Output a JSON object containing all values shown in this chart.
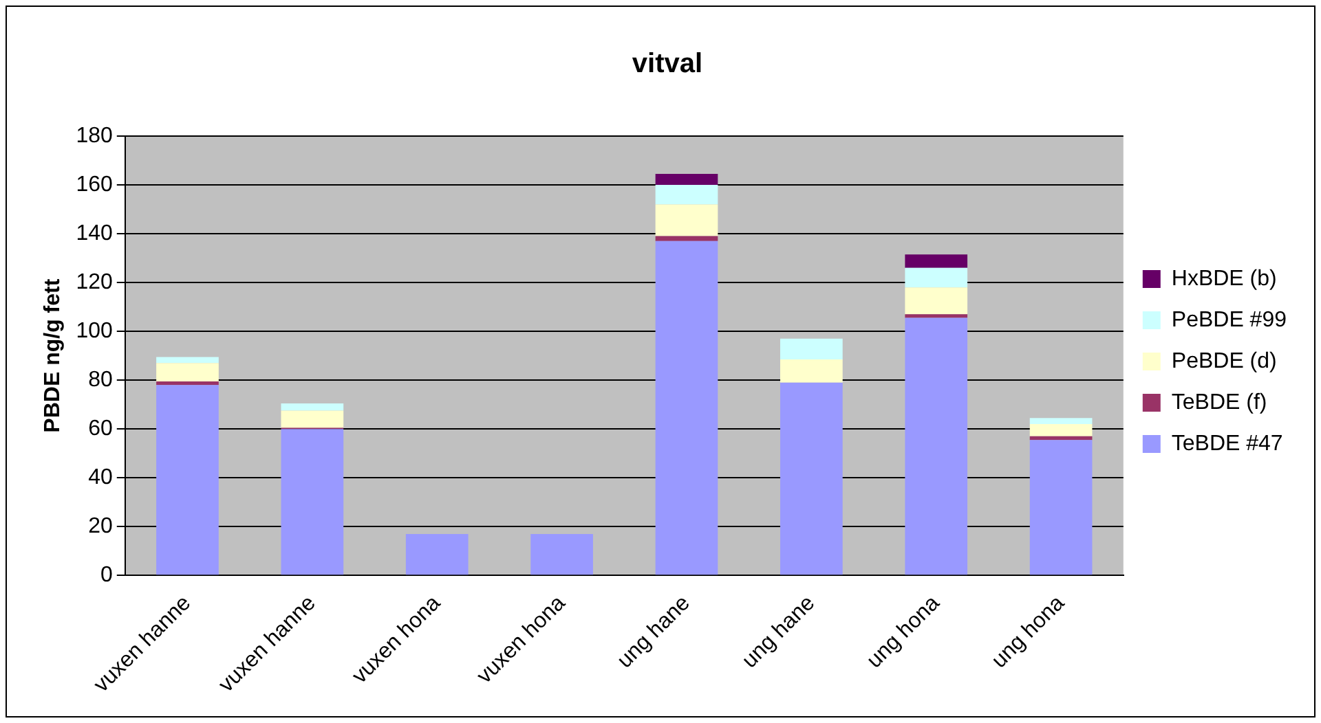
{
  "chart_data": {
    "type": "bar",
    "title": "vitval",
    "ylabel": "PBDE ng/g fett",
    "stacked": true,
    "categories": [
      "vuxen hanne",
      "vuxen hanne",
      "vuxen hona",
      "vuxen hona",
      "ung hane",
      "ung hane",
      "ung hona",
      "ung hona"
    ],
    "series": [
      {
        "name": "TeBDE #47",
        "color": "#9999ff",
        "values": [
          78,
          60,
          17,
          17,
          137,
          79,
          105.5,
          55.5
        ]
      },
      {
        "name": "TeBDE (f)",
        "color": "#993366",
        "values": [
          1.5,
          0.5,
          0,
          0,
          2,
          0,
          1.5,
          1.5
        ]
      },
      {
        "name": "PeBDE (d)",
        "color": "#ffffcc",
        "values": [
          7.5,
          7,
          0,
          0,
          13,
          9.5,
          11,
          5
        ]
      },
      {
        "name": "PeBDE #99",
        "color": "#ccffff",
        "values": [
          2.5,
          3,
          0,
          0,
          8,
          8.5,
          8,
          2.5
        ]
      },
      {
        "name": "HxBDE (b)",
        "color": "#660066",
        "values": [
          0,
          0,
          0,
          0,
          4.5,
          0,
          5.5,
          0
        ]
      }
    ],
    "ylim": [
      0,
      180
    ],
    "yticks": [
      0,
      20,
      40,
      60,
      80,
      100,
      120,
      140,
      160,
      180
    ],
    "grid": "y",
    "legend": "right"
  }
}
